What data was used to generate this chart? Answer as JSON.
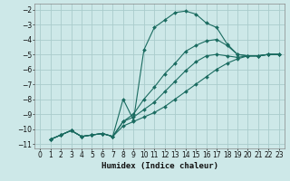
{
  "xlabel": "Humidex (Indice chaleur)",
  "bg_color": "#cde8e8",
  "grid_color": "#aacccc",
  "line_color": "#1a6b60",
  "xlim": [
    -0.5,
    23.5
  ],
  "ylim": [
    -11.3,
    -1.6
  ],
  "xticks": [
    0,
    1,
    2,
    3,
    4,
    5,
    6,
    7,
    8,
    9,
    10,
    11,
    12,
    13,
    14,
    15,
    16,
    17,
    18,
    19,
    20,
    21,
    22,
    23
  ],
  "yticks": [
    -2,
    -3,
    -4,
    -5,
    -6,
    -7,
    -8,
    -9,
    -10,
    -11
  ],
  "lines": [
    {
      "x": [
        1,
        2,
        3,
        4,
        5,
        6,
        7,
        8,
        9,
        10,
        11,
        12,
        13,
        14,
        15,
        16,
        17,
        18,
        19,
        20,
        21,
        22,
        23
      ],
      "y": [
        -10.7,
        -10.4,
        -10.1,
        -10.5,
        -10.4,
        -10.3,
        -10.5,
        -8.0,
        -9.4,
        -4.7,
        -3.2,
        -2.7,
        -2.2,
        -2.1,
        -2.3,
        -2.9,
        -3.2,
        -4.3,
        -5.0,
        -5.1,
        -5.1,
        -5.0,
        -5.0
      ]
    },
    {
      "x": [
        1,
        2,
        3,
        4,
        5,
        6,
        7,
        8,
        9,
        10,
        11,
        12,
        13,
        14,
        15,
        16,
        17,
        18,
        19,
        20,
        21,
        22,
        23
      ],
      "y": [
        -10.7,
        -10.4,
        -10.1,
        -10.5,
        -10.4,
        -10.3,
        -10.5,
        -9.5,
        -9.0,
        -8.0,
        -7.2,
        -6.3,
        -5.6,
        -4.8,
        -4.4,
        -4.1,
        -4.0,
        -4.4,
        -5.0,
        -5.1,
        -5.1,
        -5.0,
        -5.0
      ]
    },
    {
      "x": [
        1,
        2,
        3,
        4,
        5,
        6,
        7,
        8,
        9,
        10,
        11,
        12,
        13,
        14,
        15,
        16,
        17,
        18,
        19,
        20,
        21,
        22,
        23
      ],
      "y": [
        -10.7,
        -10.4,
        -10.1,
        -10.5,
        -10.4,
        -10.3,
        -10.5,
        -9.5,
        -9.2,
        -8.7,
        -8.2,
        -7.5,
        -6.8,
        -6.1,
        -5.5,
        -5.1,
        -5.0,
        -5.1,
        -5.2,
        -5.1,
        -5.1,
        -5.0,
        -5.0
      ]
    },
    {
      "x": [
        1,
        2,
        3,
        4,
        5,
        6,
        7,
        8,
        9,
        10,
        11,
        12,
        13,
        14,
        15,
        16,
        17,
        18,
        19,
        20,
        21,
        22,
        23
      ],
      "y": [
        -10.7,
        -10.4,
        -10.1,
        -10.5,
        -10.4,
        -10.3,
        -10.5,
        -9.8,
        -9.5,
        -9.2,
        -8.9,
        -8.5,
        -8.0,
        -7.5,
        -7.0,
        -6.5,
        -6.0,
        -5.6,
        -5.3,
        -5.1,
        -5.1,
        -5.0,
        -5.0
      ]
    }
  ]
}
